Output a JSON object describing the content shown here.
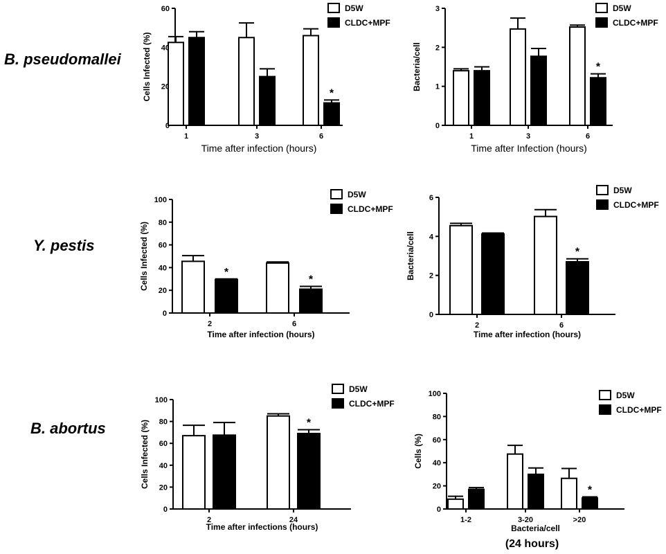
{
  "row_labels": [
    "B. pseudomallei",
    "Y. pestis",
    "B. abortus"
  ],
  "chart_data": [
    {
      "type": "bar",
      "categories": [
        "1",
        "3",
        "6"
      ],
      "series": [
        {
          "name": "D5W",
          "values": [
            42.5,
            45,
            46
          ],
          "errors": [
            3,
            7.5,
            3.5
          ],
          "stars": [
            false,
            false,
            false
          ]
        },
        {
          "name": "CLDC+MPF",
          "values": [
            45,
            25,
            11.5
          ],
          "errors": [
            3,
            4,
            1.5
          ],
          "stars": [
            false,
            false,
            true
          ]
        }
      ],
      "xlabel": "Time after infection (hours)",
      "ylabel": "Cells Infected (%)",
      "ylim": [
        0,
        60
      ],
      "yticks": [
        0,
        20,
        40,
        60
      ],
      "legend": "top-right",
      "grid": false
    },
    {
      "type": "bar",
      "categories": [
        "1",
        "3",
        "6"
      ],
      "series": [
        {
          "name": "D5W",
          "values": [
            1.4,
            2.47,
            2.52
          ],
          "errors": [
            0.05,
            0.28,
            0.05
          ],
          "stars": [
            false,
            false,
            false
          ]
        },
        {
          "name": "CLDC+MPF",
          "values": [
            1.4,
            1.77,
            1.22
          ],
          "errors": [
            0.1,
            0.2,
            0.1
          ],
          "stars": [
            false,
            false,
            true
          ]
        }
      ],
      "xlabel": "Time after Infection (hours)",
      "ylabel": "Bacteria/cell",
      "ylim": [
        0,
        3
      ],
      "yticks": [
        0,
        1,
        2,
        3
      ],
      "legend": "top-right",
      "grid": false
    },
    {
      "type": "bar",
      "categories": [
        "2",
        "6"
      ],
      "series": [
        {
          "name": "D5W",
          "values": [
            45.5,
            44
          ],
          "errors": [
            5,
            1
          ],
          "stars": [
            false,
            false
          ]
        },
        {
          "name": "CLDC+MPF",
          "values": [
            29.5,
            21
          ],
          "errors": [
            0.5,
            2.5
          ],
          "stars": [
            true,
            true
          ]
        }
      ],
      "xlabel": "Time after infection (hours)",
      "ylabel": "Cells Infected (%)",
      "ylim": [
        0,
        100
      ],
      "yticks": [
        0,
        20,
        40,
        60,
        80,
        100
      ],
      "legend": "top-right",
      "grid": false
    },
    {
      "type": "bar",
      "categories": [
        "2",
        "6"
      ],
      "series": [
        {
          "name": "D5W",
          "values": [
            4.55,
            5.02
          ],
          "errors": [
            0.12,
            0.35
          ],
          "stars": [
            false,
            false
          ]
        },
        {
          "name": "CLDC+MPF",
          "values": [
            4.12,
            2.7
          ],
          "errors": [
            0.05,
            0.15
          ],
          "stars": [
            false,
            true
          ]
        }
      ],
      "xlabel": "Time after infection (hours)",
      "ylabel": "Bacteria/cell",
      "ylim": [
        0,
        6
      ],
      "yticks": [
        0,
        2,
        4,
        6
      ],
      "legend": "top-right",
      "grid": false
    },
    {
      "type": "bar",
      "categories": [
        "2",
        "24"
      ],
      "series": [
        {
          "name": "D5W",
          "values": [
            67,
            85
          ],
          "errors": [
            9.5,
            2
          ],
          "stars": [
            false,
            false
          ]
        },
        {
          "name": "CLDC+MPF",
          "values": [
            67.5,
            69
          ],
          "errors": [
            11.5,
            3.5
          ],
          "stars": [
            false,
            true
          ]
        }
      ],
      "xlabel": "Time after infections (hours)",
      "ylabel": "Cells Infected (%)",
      "ylim": [
        0,
        100
      ],
      "yticks": [
        0,
        20,
        40,
        60,
        80,
        100
      ],
      "legend": "top-right",
      "grid": false
    },
    {
      "type": "bar",
      "categories": [
        "1-2",
        "3-20",
        ">20"
      ],
      "series": [
        {
          "name": "D5W",
          "values": [
            8.5,
            47.5,
            26.5
          ],
          "errors": [
            2.5,
            7.5,
            8.5
          ],
          "stars": [
            false,
            false,
            false
          ]
        },
        {
          "name": "CLDC+MPF",
          "values": [
            17,
            30,
            9.5
          ],
          "errors": [
            1.5,
            5.5,
            1
          ],
          "stars": [
            false,
            false,
            true
          ]
        }
      ],
      "xlabel": "Bacteria/cell",
      "ylabel": "Cells (%)",
      "ylim": [
        0,
        100
      ],
      "yticks": [
        0,
        20,
        40,
        60,
        80,
        100
      ],
      "legend": "top-right",
      "grid": false,
      "footnote": "(24 hours)"
    }
  ],
  "colors": {
    "D5W": "#ffffff",
    "CLDC+MPF": "#000000",
    "stroke": "#000000"
  }
}
